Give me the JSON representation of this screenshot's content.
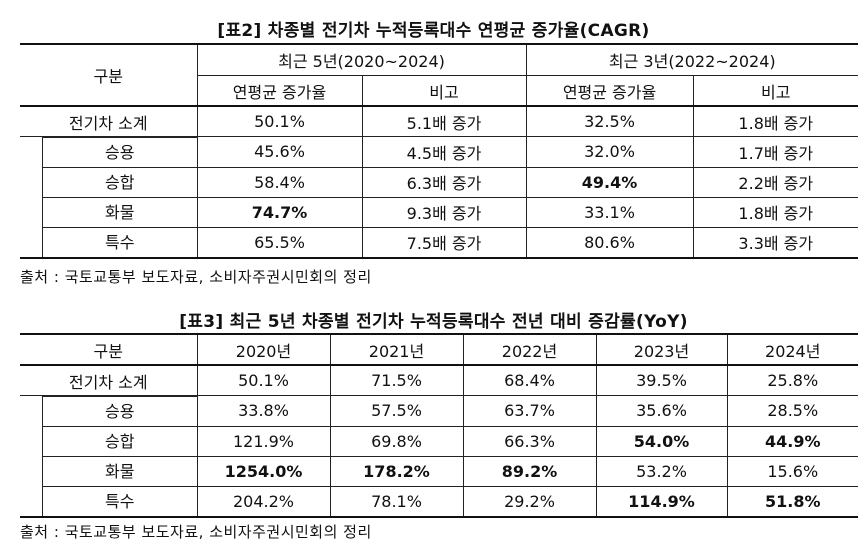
{
  "table2": {
    "title": "[표2] 차종별 전기차 누적등록대수 연평균 증가율(CAGR)",
    "header_category": "구분",
    "group1": "최근 5년(2020~2024)",
    "group2": "최근 3년(2022~2024)",
    "sub_headers": [
      "연평균 증가율",
      "비고",
      "연평균 증가율",
      "비고"
    ],
    "rows": [
      {
        "label": "전기차 소계",
        "c1": "50.1%",
        "c2": "5.1배 증가",
        "c3": "32.5%",
        "c4": "1.8배 증가"
      },
      {
        "label": "승용",
        "c1": "45.6%",
        "c2": "4.5배 증가",
        "c3": "32.0%",
        "c4": "1.7배 증가"
      },
      {
        "label": "승합",
        "c1": "58.4%",
        "c2": "6.3배 증가",
        "c3": "49.4%",
        "c4": "2.2배 증가"
      },
      {
        "label": "화물",
        "c1": "74.7%",
        "c2": "9.3배 증가",
        "c3": "33.1%",
        "c4": "1.8배 증가"
      },
      {
        "label": "특수",
        "c1": "65.5%",
        "c2": "7.5배 증가",
        "c3": "80.6%",
        "c4": "3.3배 증가"
      }
    ],
    "source": "출처 : 국토교통부 보도자료, 소비자주권시민회의 정리"
  },
  "table3": {
    "title": "[표3] 최근 5년 차종별 전기차 누적등록대수 전년 대비 증감률(YoY)",
    "header_category": "구분",
    "years": [
      "2020년",
      "2021년",
      "2022년",
      "2023년",
      "2024년"
    ],
    "rows": [
      {
        "label": "전기차 소계",
        "values": [
          "50.1%",
          "71.5%",
          "68.4%",
          "39.5%",
          "25.8%"
        ]
      },
      {
        "label": "승용",
        "values": [
          "33.8%",
          "57.5%",
          "63.7%",
          "35.6%",
          "28.5%"
        ]
      },
      {
        "label": "승합",
        "values": [
          "121.9%",
          "69.8%",
          "66.3%",
          "54.0%",
          "44.9%"
        ]
      },
      {
        "label": "화물",
        "values": [
          "1254.0%",
          "178.2%",
          "89.2%",
          "53.2%",
          "15.6%"
        ]
      },
      {
        "label": "특수",
        "values": [
          "204.2%",
          "78.1%",
          "29.2%",
          "114.9%",
          "51.8%"
        ]
      }
    ],
    "source": "출처 : 국토교통부 보도자료, 소비자주권시민회의 정리"
  }
}
